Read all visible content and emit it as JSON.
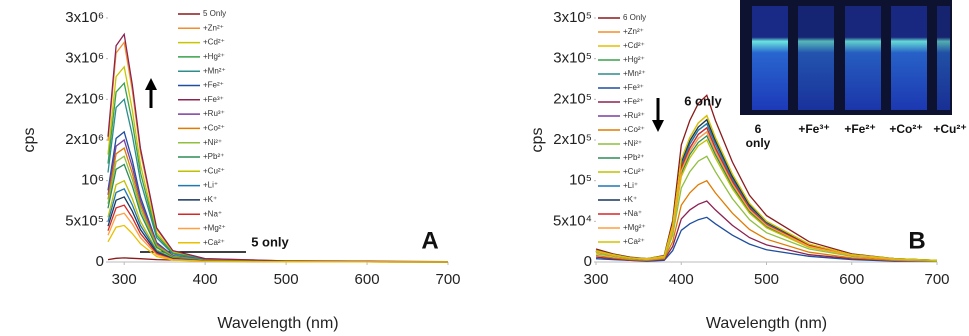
{
  "chart_data": [
    {
      "type": "line",
      "panel_label": "A",
      "xlabel": "Wavelength (nm)",
      "ylabel": "cps",
      "annotation": "5 only",
      "x": [
        280,
        290,
        300,
        310,
        320,
        340,
        360,
        400,
        500,
        600,
        700
      ],
      "xlim": [
        280,
        700
      ],
      "xticks": [
        300,
        400,
        500,
        600,
        700
      ],
      "ylim": [
        0,
        3000000
      ],
      "yticks": [
        0,
        {
          "value": 500000,
          "label": "5x10⁵"
        },
        {
          "value": 1000000,
          "label": "10⁶"
        },
        {
          "value": 1500000,
          "label": "2x10⁶"
        },
        {
          "value": 2000000,
          "label": "2x10⁶"
        },
        {
          "value": 2500000,
          "label": "3x10⁶"
        },
        {
          "value": 3000000,
          "label": "3x10⁶"
        }
      ],
      "series": [
        {
          "name": "5 Only",
          "color": "#8b1a1a",
          "values": [
            30000,
            45000,
            50000,
            45000,
            40000,
            30000,
            25000,
            20000,
            15000,
            10000,
            5000
          ]
        },
        {
          "name": "+Zn²⁺",
          "color": "#f28e2b",
          "values": [
            1490000,
            2570000,
            2700000,
            2110000,
            1350000,
            405000,
            135000,
            41000,
            14000,
            5000,
            0
          ]
        },
        {
          "name": "+Cd²⁺",
          "color": "#c9c400",
          "values": [
            1320000,
            2280000,
            2400000,
            1870000,
            1200000,
            360000,
            120000,
            36000,
            12000,
            5000,
            0
          ]
        },
        {
          "name": "+Hg²⁺",
          "color": "#3aa14b",
          "values": [
            1210000,
            2090000,
            2200000,
            1720000,
            1100000,
            330000,
            110000,
            33000,
            11000,
            4000,
            0
          ]
        },
        {
          "name": "+Mn²⁺",
          "color": "#2d8c8c",
          "values": [
            1100000,
            1900000,
            2000000,
            1560000,
            1000000,
            300000,
            100000,
            30000,
            10000,
            4000,
            0
          ]
        },
        {
          "name": "+Fe²⁺",
          "color": "#1f4e9e",
          "values": [
            880000,
            1520000,
            1600000,
            1250000,
            800000,
            240000,
            80000,
            24000,
            8000,
            3000,
            0
          ]
        },
        {
          "name": "+Fe³⁺",
          "color": "#8b2252",
          "values": [
            1540000,
            2660000,
            2800000,
            2180000,
            1400000,
            420000,
            140000,
            42000,
            14000,
            6000,
            0
          ]
        },
        {
          "name": "+Ru³⁺",
          "color": "#7b3f9e",
          "values": [
            825000,
            1425000,
            1500000,
            1170000,
            750000,
            225000,
            75000,
            23000,
            8000,
            3000,
            0
          ]
        },
        {
          "name": "+Co²⁺",
          "color": "#e07b00",
          "values": [
            770000,
            1330000,
            1400000,
            1090000,
            700000,
            210000,
            70000,
            21000,
            7000,
            3000,
            0
          ]
        },
        {
          "name": "+Ni²⁺",
          "color": "#8fbf3f",
          "values": [
            715000,
            1235000,
            1300000,
            1014000,
            650000,
            195000,
            65000,
            20000,
            7000,
            3000,
            0
          ]
        },
        {
          "name": "+Pb²⁺",
          "color": "#2e8b57",
          "values": [
            660000,
            1140000,
            1200000,
            936000,
            600000,
            180000,
            60000,
            18000,
            6000,
            2000,
            0
          ]
        },
        {
          "name": "+Cu²⁺",
          "color": "#c0c000",
          "values": [
            550000,
            950000,
            1000000,
            780000,
            500000,
            150000,
            50000,
            15000,
            5000,
            2000,
            0
          ]
        },
        {
          "name": "+Li⁺",
          "color": "#1f77b4",
          "values": [
            495000,
            855000,
            900000,
            702000,
            450000,
            135000,
            45000,
            14000,
            5000,
            2000,
            0
          ]
        },
        {
          "name": "+K⁺",
          "color": "#17365d",
          "values": [
            440000,
            760000,
            800000,
            624000,
            400000,
            120000,
            40000,
            12000,
            4000,
            2000,
            0
          ]
        },
        {
          "name": "+Na⁺",
          "color": "#d62728",
          "values": [
            385000,
            665000,
            700000,
            546000,
            350000,
            105000,
            35000,
            11000,
            4000,
            1000,
            0
          ]
        },
        {
          "name": "+Mg²⁺",
          "color": "#ff9f40",
          "values": [
            330000,
            570000,
            600000,
            468000,
            300000,
            90000,
            30000,
            9000,
            3000,
            1000,
            0
          ]
        },
        {
          "name": "+Ca²⁺",
          "color": "#e8c000",
          "values": [
            248000,
            428000,
            450000,
            351000,
            225000,
            68000,
            23000,
            7000,
            2000,
            1000,
            0
          ]
        }
      ]
    },
    {
      "type": "line",
      "panel_label": "B",
      "xlabel": "Wavelength (nm)",
      "ylabel": "cps",
      "annotation": "6 only",
      "inset_labels": [
        "6 only",
        "+Fe³⁺",
        "+Fe²⁺",
        "+Co²⁺",
        "+Cu²⁺"
      ],
      "x": [
        300,
        320,
        340,
        360,
        380,
        390,
        400,
        410,
        420,
        430,
        440,
        460,
        480,
        500,
        550,
        600,
        650,
        700
      ],
      "xlim": [
        300,
        700
      ],
      "xticks": [
        300,
        400,
        500,
        600,
        700
      ],
      "ylim": [
        0,
        300000
      ],
      "yticks": [
        0,
        {
          "value": 50000,
          "label": "5x10⁴"
        },
        {
          "value": 100000,
          "label": "10⁵"
        },
        {
          "value": 150000,
          "label": "2x10⁵"
        },
        {
          "value": 200000,
          "label": "2x10⁵"
        },
        {
          "value": 250000,
          "label": "3x10⁵"
        },
        {
          "value": 300000,
          "label": "3x10⁵"
        }
      ],
      "series": [
        {
          "name": "6 Only",
          "color": "#8b1a1a",
          "values": [
            16000,
            10000,
            6000,
            4000,
            8000,
            51000,
            144000,
            174000,
            195000,
            205000,
            174000,
            123000,
            82000,
            57000,
            25000,
            10000,
            4000,
            2000
          ]
        },
        {
          "name": "+Zn²⁺",
          "color": "#f28e2b",
          "values": [
            14000,
            9000,
            5000,
            4000,
            7000,
            45000,
            126000,
            153000,
            171000,
            180000,
            153000,
            108000,
            72000,
            50000,
            22000,
            9000,
            4000,
            2000
          ]
        },
        {
          "name": "+Cd²⁺",
          "color": "#e0c000",
          "values": [
            14000,
            9000,
            5000,
            4000,
            7000,
            44000,
            123000,
            149000,
            166000,
            175000,
            149000,
            105000,
            70000,
            49000,
            21000,
            9000,
            4000,
            2000
          ]
        },
        {
          "name": "+Hg²⁺",
          "color": "#3aa14b",
          "values": [
            14000,
            9000,
            5000,
            3000,
            7000,
            43000,
            119000,
            145000,
            162000,
            170000,
            145000,
            102000,
            68000,
            48000,
            20000,
            9000,
            3000,
            2000
          ]
        },
        {
          "name": "+Mn²⁺",
          "color": "#2d8c8c",
          "values": [
            13000,
            8000,
            5000,
            3000,
            7000,
            41000,
            116000,
            140000,
            157000,
            165000,
            140000,
            99000,
            66000,
            46000,
            20000,
            8000,
            3000,
            2000
          ]
        },
        {
          "name": "+Fe³⁺",
          "color": "#1f4e9e",
          "values": [
            4000,
            3000,
            2000,
            1000,
            2000,
            14000,
            39000,
            47000,
            52000,
            55000,
            47000,
            33000,
            22000,
            15000,
            7000,
            3000,
            1000,
            1000
          ]
        },
        {
          "name": "+Fe²⁺",
          "color": "#8b2252",
          "values": [
            6000,
            4000,
            2000,
            2000,
            3000,
            19000,
            53000,
            64000,
            71000,
            75000,
            64000,
            45000,
            30000,
            21000,
            9000,
            4000,
            2000,
            1000
          ]
        },
        {
          "name": "+Ru³⁺",
          "color": "#7b3f9e",
          "values": [
            13000,
            8000,
            5000,
            3000,
            6000,
            40000,
            112000,
            136000,
            152000,
            160000,
            136000,
            96000,
            64000,
            45000,
            19000,
            8000,
            3000,
            2000
          ]
        },
        {
          "name": "+Co²⁺",
          "color": "#e07b00",
          "values": [
            8000,
            5000,
            3000,
            2000,
            4000,
            25000,
            70000,
            85000,
            95000,
            100000,
            85000,
            60000,
            40000,
            28000,
            12000,
            5000,
            2000,
            1000
          ]
        },
        {
          "name": "+Ni²⁺",
          "color": "#8fbf3f",
          "values": [
            10000,
            7000,
            4000,
            3000,
            5000,
            33000,
            91000,
            111000,
            124000,
            130000,
            111000,
            78000,
            52000,
            36000,
            16000,
            7000,
            3000,
            1000
          ]
        },
        {
          "name": "+Pb²⁺",
          "color": "#2e8b57",
          "values": [
            12000,
            8000,
            5000,
            3000,
            6000,
            39000,
            109000,
            132000,
            147000,
            155000,
            132000,
            93000,
            62000,
            43000,
            19000,
            8000,
            3000,
            2000
          ]
        },
        {
          "name": "+Cu²⁺",
          "color": "#c0c000",
          "values": [
            12000,
            8000,
            5000,
            3000,
            6000,
            38000,
            105000,
            128000,
            143000,
            150000,
            128000,
            90000,
            60000,
            42000,
            18000,
            8000,
            3000,
            2000
          ]
        },
        {
          "name": "+Li⁺",
          "color": "#1f77b4",
          "values": [
            14000,
            9000,
            5000,
            3000,
            7000,
            43000,
            119000,
            145000,
            162000,
            170000,
            145000,
            102000,
            68000,
            48000,
            20000,
            9000,
            3000,
            2000
          ]
        },
        {
          "name": "+K⁺",
          "color": "#17365d",
          "values": [
            14000,
            9000,
            5000,
            4000,
            7000,
            44000,
            123000,
            149000,
            166000,
            175000,
            149000,
            105000,
            70000,
            49000,
            21000,
            9000,
            4000,
            2000
          ]
        },
        {
          "name": "+Na⁺",
          "color": "#d62728",
          "values": [
            13000,
            8000,
            5000,
            3000,
            7000,
            41000,
            116000,
            140000,
            157000,
            165000,
            140000,
            99000,
            66000,
            46000,
            20000,
            8000,
            3000,
            2000
          ]
        },
        {
          "name": "+Mg²⁺",
          "color": "#ff9f40",
          "values": [
            13000,
            8000,
            5000,
            3000,
            6000,
            40000,
            112000,
            136000,
            152000,
            160000,
            136000,
            96000,
            64000,
            45000,
            19000,
            8000,
            3000,
            2000
          ]
        },
        {
          "name": "+Ca²⁺",
          "color": "#d4c400",
          "values": [
            14000,
            9000,
            5000,
            4000,
            7000,
            45000,
            126000,
            153000,
            171000,
            180000,
            153000,
            108000,
            72000,
            50000,
            22000,
            9000,
            4000,
            2000
          ]
        }
      ]
    }
  ]
}
